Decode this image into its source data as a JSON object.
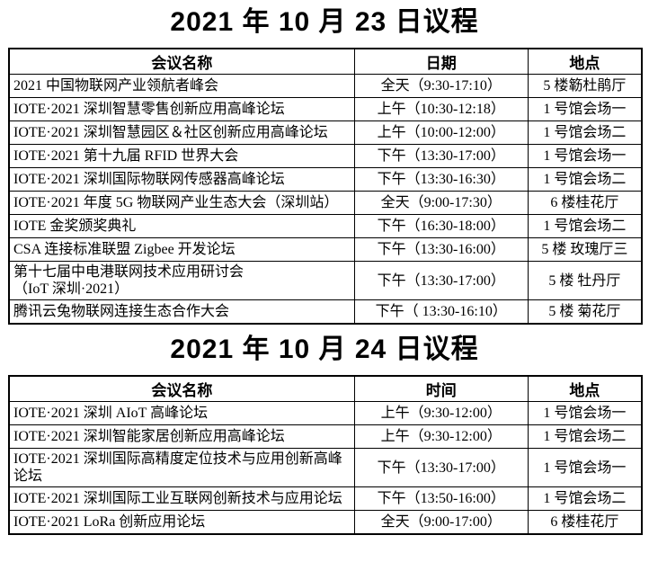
{
  "sections": [
    {
      "title": "2021 年 10 月 23 日议程",
      "columns": [
        "会议名称",
        "日期",
        "地点"
      ],
      "rows": [
        [
          "2021 中国物联网产业领航者峰会",
          "全天（9:30-17:10）",
          "5 楼簕杜鹃厅"
        ],
        [
          "IOTE·2021 深圳智慧零售创新应用高峰论坛",
          "上午（10:30-12:18）",
          "1 号馆会场一"
        ],
        [
          "IOTE·2021 深圳智慧园区＆社区创新应用高峰论坛",
          "上午（10:00-12:00）",
          "1 号馆会场二"
        ],
        [
          "IOTE·2021 第十九届 RFID 世界大会",
          "下午（13:30-17:00）",
          "1 号馆会场一"
        ],
        [
          "IOTE·2021 深圳国际物联网传感器高峰论坛",
          "下午（13:30-16:30）",
          "1 号馆会场二"
        ],
        [
          "IOTE·2021 年度 5G 物联网产业生态大会（深圳站）",
          "全天（9:00-17:30）",
          "6 楼桂花厅"
        ],
        [
          "IOTE 金奖颁奖典礼",
          "下午（16:30-18:00）",
          "1 号馆会场二"
        ],
        [
          "CSA 连接标准联盟 Zigbee 开发论坛",
          "下午（13:30-16:00）",
          "5 楼 玫瑰厅三"
        ],
        [
          "第十七届中电港联网技术应用研讨会\n（IoT 深圳·2021）",
          "下午（13:30-17:00）",
          "5 楼 牡丹厅"
        ],
        [
          "腾讯云兔物联网连接生态合作大会",
          "下午（ 13:30-16:10）",
          "5 楼 菊花厅"
        ]
      ]
    },
    {
      "title": "2021 年 10 月 24 日议程",
      "columns": [
        "会议名称",
        "时间",
        "地点"
      ],
      "rows": [
        [
          "IOTE·2021 深圳 AIoT 高峰论坛",
          "上午（9:30-12:00）",
          "1 号馆会场一"
        ],
        [
          "IOTE·2021 深圳智能家居创新应用高峰论坛",
          "上午（9:30-12:00）",
          "1 号馆会场二"
        ],
        [
          "IOTE·2021 深圳国际高精度定位技术与应用创新高峰论坛",
          "下午（13:30-17:00）",
          "1 号馆会场一"
        ],
        [
          "IOTE·2021 深圳国际工业互联网创新技术与应用论坛",
          "下午（13:50-16:00）",
          "1 号馆会场二"
        ],
        [
          "IOTE·2021 LoRa 创新应用论坛",
          "全天（9:00-17:00）",
          "6 楼桂花厅"
        ]
      ]
    }
  ]
}
